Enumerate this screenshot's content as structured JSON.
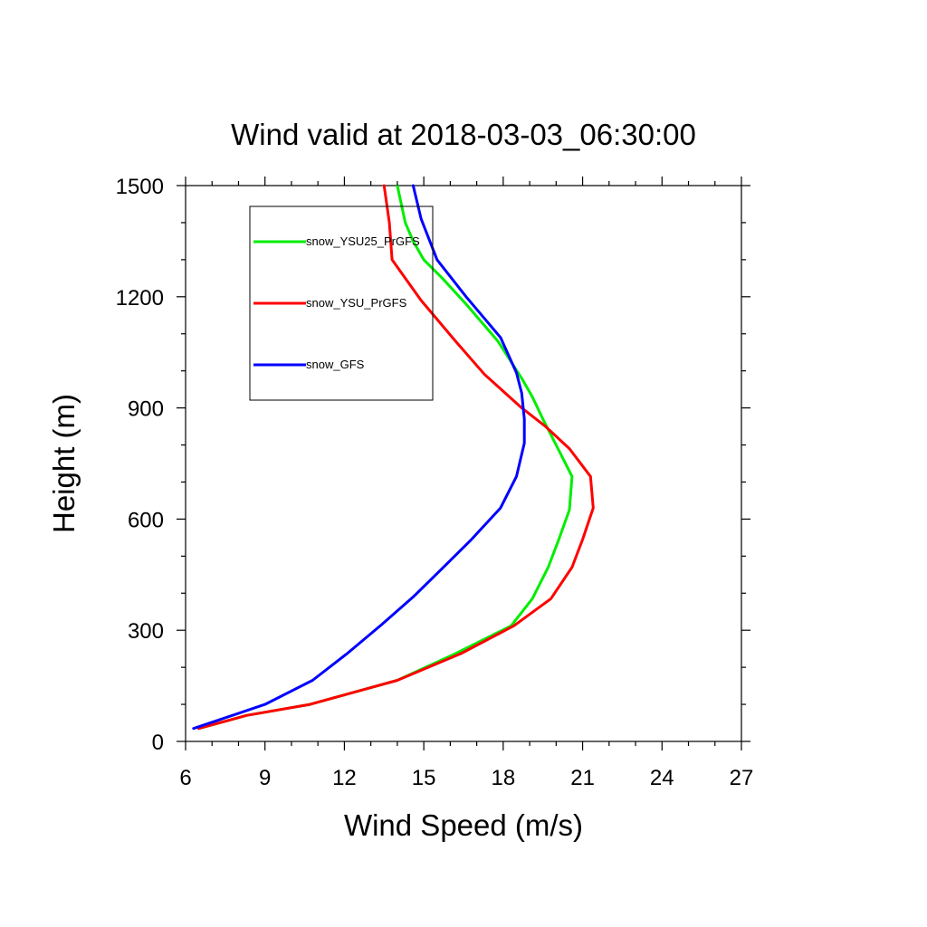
{
  "chart_data": {
    "type": "line",
    "title": "Wind valid at 2018-03-03_06:30:00",
    "xlabel": "Wind Speed (m/s)",
    "ylabel": "Height (m)",
    "xlim": [
      6,
      27
    ],
    "ylim": [
      0,
      1500
    ],
    "xticks": [
      6,
      9,
      12,
      15,
      18,
      21,
      24,
      27
    ],
    "yticks": [
      0,
      300,
      600,
      900,
      1200,
      1500
    ],
    "xticks_minor_step": 1,
    "yticks_minor_step": 100,
    "legend_position": "top-left",
    "series": [
      {
        "name": "snow_YSU25_PrGFS",
        "color": "#00ee00",
        "points": [
          [
            6.5,
            35
          ],
          [
            8.3,
            70
          ],
          [
            10.7,
            100
          ],
          [
            14.0,
            165
          ],
          [
            16.2,
            237
          ],
          [
            18.3,
            312
          ],
          [
            19.1,
            385
          ],
          [
            19.7,
            470
          ],
          [
            20.1,
            545
          ],
          [
            20.5,
            625
          ],
          [
            20.6,
            715
          ],
          [
            20.0,
            800
          ],
          [
            19.5,
            870
          ],
          [
            19.1,
            930
          ],
          [
            18.7,
            980
          ],
          [
            17.8,
            1080
          ],
          [
            16.6,
            1180
          ],
          [
            15.7,
            1250
          ],
          [
            15.0,
            1300
          ],
          [
            14.6,
            1350
          ],
          [
            14.3,
            1400
          ],
          [
            14.0,
            1500
          ]
        ]
      },
      {
        "name": "snow_YSU_PrGFS",
        "color": "#ff0000",
        "points": [
          [
            6.5,
            35
          ],
          [
            8.3,
            70
          ],
          [
            10.7,
            100
          ],
          [
            14.0,
            165
          ],
          [
            16.4,
            237
          ],
          [
            18.4,
            312
          ],
          [
            19.8,
            385
          ],
          [
            20.6,
            470
          ],
          [
            21.0,
            545
          ],
          [
            21.4,
            630
          ],
          [
            21.3,
            715
          ],
          [
            20.5,
            790
          ],
          [
            19.6,
            850
          ],
          [
            18.7,
            900
          ],
          [
            17.3,
            990
          ],
          [
            16.2,
            1080
          ],
          [
            14.9,
            1190
          ],
          [
            13.8,
            1300
          ],
          [
            13.7,
            1400
          ],
          [
            13.5,
            1500
          ]
        ]
      },
      {
        "name": "snow_GFS",
        "color": "#0000ff",
        "points": [
          [
            6.3,
            35
          ],
          [
            9.0,
            100
          ],
          [
            10.8,
            165
          ],
          [
            12.1,
            237
          ],
          [
            13.4,
            315
          ],
          [
            14.6,
            390
          ],
          [
            15.6,
            460
          ],
          [
            16.8,
            545
          ],
          [
            17.9,
            630
          ],
          [
            18.5,
            715
          ],
          [
            18.8,
            805
          ],
          [
            18.8,
            870
          ],
          [
            18.7,
            940
          ],
          [
            18.5,
            995
          ],
          [
            17.9,
            1090
          ],
          [
            16.6,
            1200
          ],
          [
            15.5,
            1300
          ],
          [
            14.9,
            1410
          ],
          [
            14.6,
            1500
          ]
        ]
      }
    ]
  }
}
